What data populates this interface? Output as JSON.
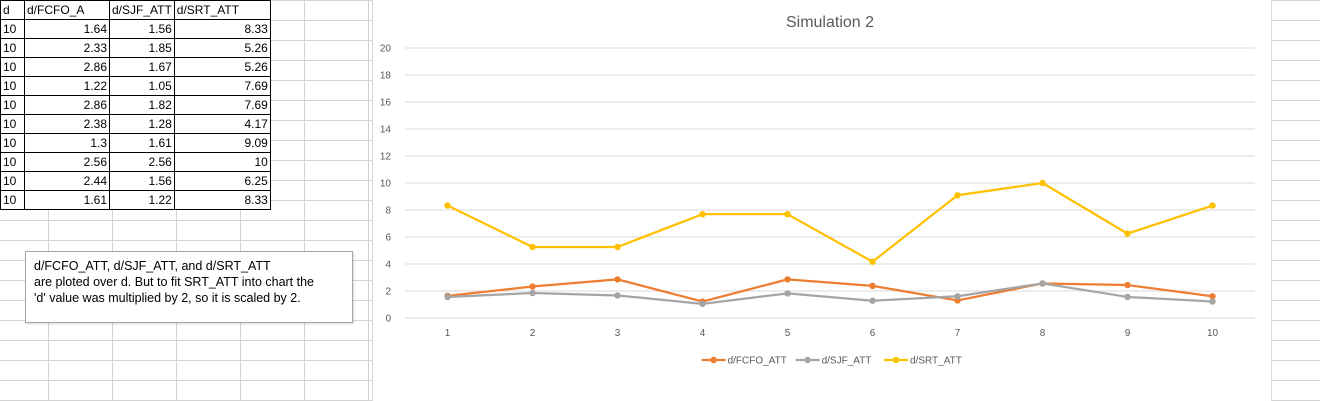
{
  "sheet": {
    "headers": [
      "d",
      "d/FCFO_A",
      "d/SJF_ATT",
      "d/SRT_ATT"
    ],
    "rows": [
      [
        "10",
        "1.64",
        "1.56",
        "8.33"
      ],
      [
        "10",
        "2.33",
        "1.85",
        "5.26"
      ],
      [
        "10",
        "2.86",
        "1.67",
        "5.26"
      ],
      [
        "10",
        "1.22",
        "1.05",
        "7.69"
      ],
      [
        "10",
        "2.86",
        "1.82",
        "7.69"
      ],
      [
        "10",
        "2.38",
        "1.28",
        "4.17"
      ],
      [
        "10",
        "1.3",
        "1.61",
        "9.09"
      ],
      [
        "10",
        "2.56",
        "2.56",
        "10"
      ],
      [
        "10",
        "2.44",
        "1.56",
        "6.25"
      ],
      [
        "10",
        "1.61",
        "1.22",
        "8.33"
      ]
    ]
  },
  "note": {
    "line1": "d/FCFO_ATT, d/SJF_ATT, and d/SRT_ATT",
    "line2": "are ploted over d. But to fit SRT_ATT into chart the",
    "line3": "'d' value was multiplied by 2, so it is scaled by 2."
  },
  "chart_data": {
    "type": "line",
    "title": "Simulation 2",
    "x": [
      1,
      2,
      3,
      4,
      5,
      6,
      7,
      8,
      9,
      10
    ],
    "ylim": [
      0,
      20
    ],
    "ytick_step": 2,
    "grid": true,
    "legend_position": "bottom",
    "series": [
      {
        "name": "d/FCFO_ATT",
        "color": "#ed7d31",
        "values": [
          1.64,
          2.33,
          2.86,
          1.22,
          2.86,
          2.38,
          1.3,
          2.56,
          2.44,
          1.61
        ]
      },
      {
        "name": "d/SJF_ATT",
        "color": "#a5a5a5",
        "values": [
          1.56,
          1.85,
          1.67,
          1.05,
          1.82,
          1.28,
          1.61,
          2.56,
          1.56,
          1.22
        ]
      },
      {
        "name": "d/SRT_ATT",
        "color": "#ffc000",
        "values": [
          8.33,
          5.26,
          5.26,
          7.69,
          7.69,
          4.17,
          9.09,
          10,
          6.25,
          8.33
        ]
      }
    ]
  }
}
